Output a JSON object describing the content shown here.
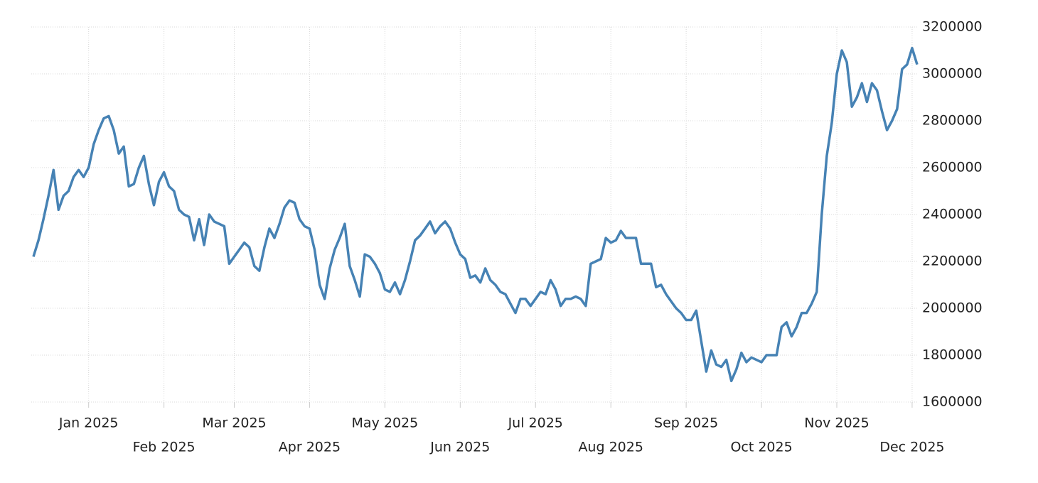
{
  "chart_data": {
    "type": "line",
    "color": "#4682b4",
    "grid": true,
    "ylim": [
      1600000,
      3200000
    ],
    "yticks": [
      1600000,
      1800000,
      2000000,
      2200000,
      2400000,
      2600000,
      2800000,
      3000000,
      3200000
    ],
    "categories": [
      null,
      null,
      null,
      null,
      null,
      null,
      null,
      null,
      null,
      null,
      null,
      "Jan 2025",
      null,
      null,
      null,
      null,
      null,
      null,
      null,
      null,
      null,
      null,
      null,
      null,
      null,
      null,
      "Feb 2025",
      null,
      null,
      null,
      null,
      null,
      null,
      null,
      null,
      null,
      null,
      null,
      null,
      null,
      "Mar 2025",
      null,
      null,
      null,
      null,
      null,
      null,
      null,
      null,
      null,
      null,
      null,
      null,
      null,
      null,
      "Apr 2025",
      null,
      null,
      null,
      null,
      null,
      null,
      null,
      null,
      null,
      null,
      null,
      null,
      null,
      null,
      "May 2025",
      null,
      null,
      null,
      null,
      null,
      null,
      null,
      null,
      null,
      null,
      null,
      null,
      null,
      null,
      "Jun 2025",
      null,
      null,
      null,
      null,
      null,
      null,
      null,
      null,
      null,
      null,
      null,
      null,
      null,
      null,
      "Jul 2025",
      null,
      null,
      null,
      null,
      null,
      null,
      null,
      null,
      null,
      null,
      null,
      null,
      null,
      null,
      "Aug 2025",
      null,
      null,
      null,
      null,
      null,
      null,
      null,
      null,
      null,
      null,
      null,
      null,
      null,
      null,
      "Sep 2025",
      null,
      null,
      null,
      null,
      null,
      null,
      null,
      null,
      null,
      null,
      null,
      null,
      null,
      null,
      "Oct 2025",
      null,
      null,
      null,
      null,
      null,
      null,
      null,
      null,
      null,
      null,
      null,
      null,
      null,
      null,
      "Nov 2025",
      null,
      null,
      null,
      null,
      null,
      null,
      null,
      null,
      null,
      null,
      null,
      null,
      null,
      null,
      "Dec 2025",
      null
    ],
    "values": [
      2220000,
      2290000,
      2380000,
      2480000,
      2590000,
      2420000,
      2480000,
      2500000,
      2560000,
      2590000,
      2560000,
      2600000,
      2700000,
      2760000,
      2810000,
      2820000,
      2760000,
      2660000,
      2690000,
      2520000,
      2530000,
      2600000,
      2650000,
      2530000,
      2440000,
      2540000,
      2580000,
      2520000,
      2500000,
      2420000,
      2400000,
      2390000,
      2290000,
      2380000,
      2270000,
      2400000,
      2370000,
      2360000,
      2350000,
      2190000,
      2220000,
      2250000,
      2280000,
      2260000,
      2180000,
      2160000,
      2260000,
      2340000,
      2300000,
      2360000,
      2430000,
      2460000,
      2450000,
      2380000,
      2350000,
      2340000,
      2250000,
      2100000,
      2040000,
      2170000,
      2250000,
      2300000,
      2360000,
      2180000,
      2120000,
      2050000,
      2230000,
      2220000,
      2190000,
      2150000,
      2080000,
      2070000,
      2110000,
      2060000,
      2120000,
      2200000,
      2290000,
      2310000,
      2340000,
      2370000,
      2320000,
      2350000,
      2370000,
      2340000,
      2280000,
      2230000,
      2210000,
      2130000,
      2140000,
      2110000,
      2170000,
      2120000,
      2100000,
      2070000,
      2060000,
      2020000,
      1980000,
      2040000,
      2040000,
      2010000,
      2040000,
      2070000,
      2060000,
      2120000,
      2080000,
      2010000,
      2040000,
      2040000,
      2050000,
      2040000,
      2010000,
      2190000,
      2200000,
      2210000,
      2300000,
      2280000,
      2290000,
      2330000,
      2300000,
      2300000,
      2300000,
      2190000,
      2190000,
      2190000,
      2090000,
      2100000,
      2060000,
      2030000,
      2000000,
      1980000,
      1950000,
      1950000,
      1990000,
      1860000,
      1730000,
      1820000,
      1760000,
      1750000,
      1780000,
      1690000,
      1740000,
      1810000,
      1770000,
      1790000,
      1780000,
      1770000,
      1800000,
      1800000,
      1800000,
      1920000,
      1940000,
      1880000,
      1920000,
      1980000,
      1980000,
      2020000,
      2070000,
      2400000,
      2650000,
      2790000,
      3000000,
      3100000,
      3050000,
      2860000,
      2900000,
      2960000,
      2880000,
      2960000,
      2930000,
      2840000,
      2760000,
      2800000,
      2850000,
      3020000,
      3040000,
      3110000,
      3040000
    ]
  }
}
